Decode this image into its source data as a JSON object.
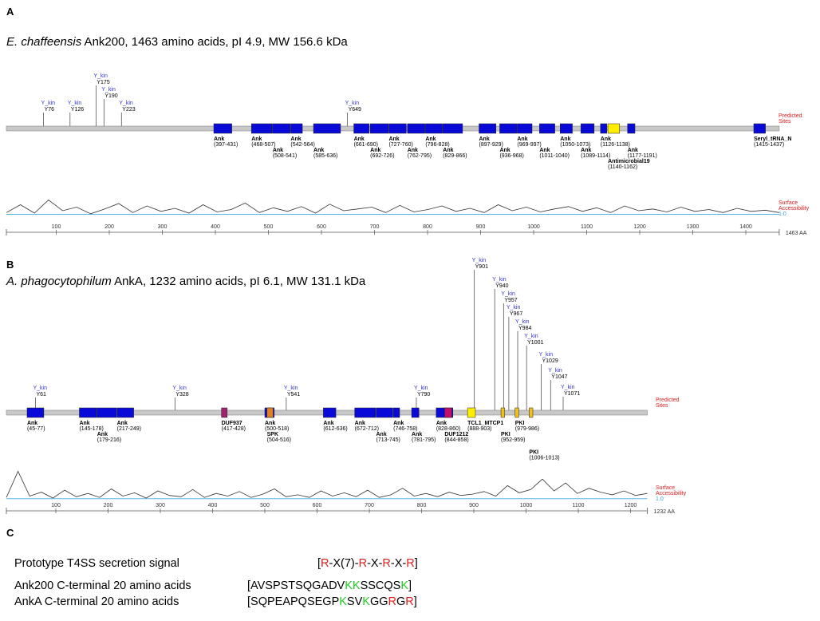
{
  "panels": [
    {
      "letter": "A",
      "title": {
        "species": "E. chaffeensis",
        "rest": " Ank200, 1463 amino acids, pI 4.9, MW 156.6 kDa"
      },
      "length": {
        "value": 1463,
        "label": "1463 AA"
      },
      "legend": {
        "sites": [
          "Predicted",
          "Sites"
        ],
        "surface": [
          "Surface",
          "Accessibility"
        ],
        "threshold": {
          "value": 1,
          "label": "1.0"
        }
      },
      "ticks": [
        100,
        200,
        300,
        400,
        500,
        600,
        700,
        800,
        900,
        1000,
        1100,
        1200,
        1300,
        1400
      ],
      "sites": [
        {
          "name": "Y_kin",
          "residue": {
            "value": 76,
            "label": "Y76"
          }
        },
        {
          "name": "Y_kin",
          "residue": {
            "value": 126,
            "label": "Y126"
          }
        },
        {
          "name": "Y_kin",
          "residue": {
            "value": 175,
            "label": "Y175"
          }
        },
        {
          "name": "Y_kin",
          "residue": {
            "value": 190,
            "label": "Y190"
          }
        },
        {
          "name": "Y_kin",
          "residue": {
            "value": 223,
            "label": "Y223"
          }
        },
        {
          "name": "Y_kin",
          "residue": {
            "value": 649,
            "label": "Y649"
          }
        }
      ],
      "domains": [
        {
          "name": "Ank",
          "start": 397,
          "end": 431,
          "range": "(397-431)",
          "color": "#0a0ad8"
        },
        {
          "name": "Ank",
          "start": 468,
          "end": 507,
          "range": "(468-507)",
          "color": "#0a0ad8"
        },
        {
          "name": "Ank",
          "start": 508,
          "end": 541,
          "range": "(508-541)",
          "color": "#0a0ad8"
        },
        {
          "name": "Ank",
          "start": 542,
          "end": 564,
          "range": "(542-564)",
          "color": "#0a0ad8"
        },
        {
          "name": "Ank",
          "start": 585,
          "end": 636,
          "range": "(585-636)",
          "color": "#0a0ad8"
        },
        {
          "name": "Ank",
          "start": 661,
          "end": 690,
          "range": "(661-690)",
          "color": "#0a0ad8"
        },
        {
          "name": "Ank",
          "start": 692,
          "end": 726,
          "range": "(692-726)",
          "color": "#0a0ad8"
        },
        {
          "name": "Ank",
          "start": 727,
          "end": 760,
          "range": "(727-760)",
          "color": "#0a0ad8"
        },
        {
          "name": "Ank",
          "start": 762,
          "end": 795,
          "range": "(762-795)",
          "color": "#0a0ad8"
        },
        {
          "name": "Ank",
          "start": 796,
          "end": 828,
          "range": "(796-828)",
          "color": "#0a0ad8"
        },
        {
          "name": "Ank",
          "start": 829,
          "end": 866,
          "range": "(829-866)",
          "color": "#0a0ad8"
        },
        {
          "name": "Ank",
          "start": 897,
          "end": 929,
          "range": "(897-929)",
          "color": "#0a0ad8"
        },
        {
          "name": "Ank",
          "start": 936,
          "end": 968,
          "range": "(936-968)",
          "color": "#0a0ad8"
        },
        {
          "name": "Ank",
          "start": 969,
          "end": 997,
          "range": "(969-997)",
          "color": "#0a0ad8"
        },
        {
          "name": "Ank",
          "start": 1011,
          "end": 1040,
          "range": "(1011-1040)",
          "color": "#0a0ad8"
        },
        {
          "name": "Ank",
          "start": 1050,
          "end": 1073,
          "range": "(1050-1073)",
          "color": "#0a0ad8"
        },
        {
          "name": "Ank",
          "start": 1089,
          "end": 1114,
          "range": "(1089-1114)",
          "color": "#0a0ad8"
        },
        {
          "name": "Ank",
          "start": 1126,
          "end": 1138,
          "range": "(1126-1138)",
          "color": "#0a0ad8"
        },
        {
          "name": "Antimicrobial19",
          "start": 1140,
          "end": 1162,
          "range": "(1140-1162)",
          "color": "#ffee00"
        },
        {
          "name": "Ank",
          "start": 1177,
          "end": 1191,
          "range": "(1177-1191)",
          "color": "#0a0ad8"
        },
        {
          "name": "Seryl_tRNA_N",
          "start": 1415,
          "end": 1437,
          "range": "(1415-1437)",
          "color": "#0a0ad8"
        }
      ],
      "profile": {
        "values": [
          1.3,
          2.6,
          1.2,
          3.4,
          1.6,
          2.2,
          1.1,
          1.9,
          2.8,
          1.3,
          2.4,
          1.5,
          2.0,
          1.2,
          2.6,
          1.4,
          1.8,
          2.9,
          1.3,
          2.1,
          1.5,
          2.3,
          1.2,
          2.7,
          1.6,
          1.9,
          2.2,
          1.3,
          2.5,
          1.4,
          1.8,
          2.4,
          1.5,
          2.0,
          1.3,
          2.6,
          1.6,
          2.2,
          1.4,
          1.9,
          2.3,
          1.5,
          2.1,
          1.3,
          2.4,
          1.6,
          1.9,
          1.4,
          2.2,
          1.5,
          1.8,
          1.3,
          2.0,
          1.5,
          1.7,
          1.3
        ]
      }
    },
    {
      "letter": "B",
      "title": {
        "species": "A. phagocytophilum",
        "rest": " AnkA, 1232 amino acids, pI 6.1, MW 131.1 kDa"
      },
      "length": {
        "value": 1232,
        "label": "1232 AA"
      },
      "legend": {
        "sites": [
          "Predicted",
          "Sites"
        ],
        "surface": [
          "Surface",
          "Accessibility"
        ],
        "threshold": {
          "value": 1,
          "label": "1.0"
        }
      },
      "ticks": [
        100,
        200,
        300,
        400,
        500,
        600,
        700,
        800,
        900,
        1000,
        1100,
        1200
      ],
      "sites": [
        {
          "name": "Y_kin",
          "residue": {
            "value": 61,
            "label": "Y61"
          }
        },
        {
          "name": "Y_kin",
          "residue": {
            "value": 328,
            "label": "Y328"
          }
        },
        {
          "name": "Y_kin",
          "residue": {
            "value": 541,
            "label": "Y541"
          }
        },
        {
          "name": "Y_kin",
          "residue": {
            "value": 790,
            "label": "Y790"
          }
        },
        {
          "name": "Y_kin",
          "residue": {
            "value": 901,
            "label": "Y901"
          }
        },
        {
          "name": "Y_kin",
          "residue": {
            "value": 940,
            "label": "Y940"
          }
        },
        {
          "name": "Y_kin",
          "residue": {
            "value": 957,
            "label": "Y957"
          }
        },
        {
          "name": "Y_kin",
          "residue": {
            "value": 967,
            "label": "Y967"
          }
        },
        {
          "name": "Y_kin",
          "residue": {
            "value": 984,
            "label": "Y984"
          }
        },
        {
          "name": "Y_kin",
          "residue": {
            "value": 1001,
            "label": "Y1001"
          }
        },
        {
          "name": "Y_kin",
          "residue": {
            "value": 1029,
            "label": "Y1029"
          }
        },
        {
          "name": "Y_kin",
          "residue": {
            "value": 1047,
            "label": "Y1047"
          }
        },
        {
          "name": "Y_kin",
          "residue": {
            "value": 1071,
            "label": "Y1071"
          }
        }
      ],
      "domains": [
        {
          "name": "Ank",
          "start": 45,
          "end": 77,
          "range": "(45-77)",
          "color": "#0a0ad8"
        },
        {
          "name": "Ank",
          "start": 145,
          "end": 178,
          "range": "(145-178)",
          "color": "#0a0ad8"
        },
        {
          "name": "Ank",
          "start": 179,
          "end": 216,
          "range": "(179-216)",
          "color": "#0a0ad8"
        },
        {
          "name": "Ank",
          "start": 217,
          "end": 249,
          "range": "(217-249)",
          "color": "#0a0ad8"
        },
        {
          "name": "DUF937",
          "start": 417,
          "end": 428,
          "range": "(417-428)",
          "color": "#a0226e"
        },
        {
          "name": "Ank",
          "start": 500,
          "end": 518,
          "range": "(500-518)",
          "color": "#0a0ad8"
        },
        {
          "name": "SPK",
          "start": 504,
          "end": 516,
          "range": "(504-516)",
          "color": "#e08020"
        },
        {
          "name": "Ank",
          "start": 612,
          "end": 636,
          "range": "(612-636)",
          "color": "#0a0ad8"
        },
        {
          "name": "Ank",
          "start": 672,
          "end": 712,
          "range": "(672-712)",
          "color": "#0a0ad8"
        },
        {
          "name": "Ank",
          "start": 713,
          "end": 745,
          "range": "(713-745)",
          "color": "#0a0ad8"
        },
        {
          "name": "Ank",
          "start": 746,
          "end": 758,
          "range": "(746-758)",
          "color": "#0a0ad8"
        },
        {
          "name": "Ank",
          "start": 781,
          "end": 795,
          "range": "(781-795)",
          "color": "#0a0ad8"
        },
        {
          "name": "Ank",
          "start": 828,
          "end": 860,
          "range": "(828-860)",
          "color": "#0a0ad8"
        },
        {
          "name": "DUF1212",
          "start": 844,
          "end": 858,
          "range": "(844-858)",
          "color": "#c0106a"
        },
        {
          "name": "TCL1_MTCP1",
          "start": 888,
          "end": 903,
          "range": "(888-903)",
          "color": "#ffee00"
        },
        {
          "name": "PKI",
          "start": 952,
          "end": 959,
          "range": "(952-959)",
          "color": "#f0c020"
        },
        {
          "name": "PKI",
          "start": 979,
          "end": 986,
          "range": "(979-986)",
          "color": "#f0c020"
        },
        {
          "name": "PKI",
          "start": 1006,
          "end": 1013,
          "range": "(1006-1013)",
          "color": "#f0c020"
        }
      ],
      "profile": {
        "values": [
          1.2,
          5.2,
          1.4,
          2.0,
          1.1,
          2.3,
          1.3,
          1.8,
          1.2,
          2.5,
          1.4,
          1.9,
          1.1,
          2.2,
          1.5,
          1.3,
          2.4,
          1.2,
          1.8,
          1.4,
          2.1,
          1.2,
          1.7,
          2.5,
          1.3,
          1.6,
          1.2,
          2.2,
          1.4,
          1.9,
          1.3,
          2.3,
          1.2,
          1.6,
          2.6,
          1.4,
          1.8,
          1.3,
          2.0,
          1.5,
          1.7,
          2.1,
          1.4,
          3.0,
          1.9,
          2.4,
          4.0,
          2.2,
          3.4,
          1.8,
          2.6,
          2.0,
          1.6,
          2.2,
          1.5,
          1.8
        ]
      }
    }
  ],
  "panel_c": {
    "letter": "C",
    "rows": [
      {
        "label": "Prototype T4SS secretion signal",
        "segments": [
          {
            "text": "[",
            "color": "#000000"
          },
          {
            "text": "R",
            "color": "#e02020"
          },
          {
            "text": "-X(7)-",
            "color": "#000000"
          },
          {
            "text": "R",
            "color": "#e02020"
          },
          {
            "text": "-X-",
            "color": "#000000"
          },
          {
            "text": "R",
            "color": "#e02020"
          },
          {
            "text": "-X-",
            "color": "#000000"
          },
          {
            "text": "R",
            "color": "#e02020"
          },
          {
            "text": "]",
            "color": "#000000"
          }
        ]
      },
      {
        "label": "Ank200 C-terminal 20 amino acids",
        "segments": [
          {
            "text": "[AVSPSTSQGADV",
            "color": "#000000"
          },
          {
            "text": "KK",
            "color": "#22cc22"
          },
          {
            "text": "SSCQS",
            "color": "#000000"
          },
          {
            "text": "K",
            "color": "#22cc22"
          },
          {
            "text": "]",
            "color": "#000000"
          }
        ]
      },
      {
        "label": "AnkA C-terminal 20 amino acids",
        "segments": [
          {
            "text": "[SQPEAPQSEGP",
            "color": "#000000"
          },
          {
            "text": "K",
            "color": "#22cc22"
          },
          {
            "text": "SV",
            "color": "#000000"
          },
          {
            "text": "K",
            "color": "#22cc22"
          },
          {
            "text": "GG",
            "color": "#000000"
          },
          {
            "text": "R",
            "color": "#e02020"
          },
          {
            "text": "G",
            "color": "#000000"
          },
          {
            "text": "R",
            "color": "#e02020"
          },
          {
            "text": "]",
            "color": "#000000"
          }
        ]
      }
    ]
  }
}
